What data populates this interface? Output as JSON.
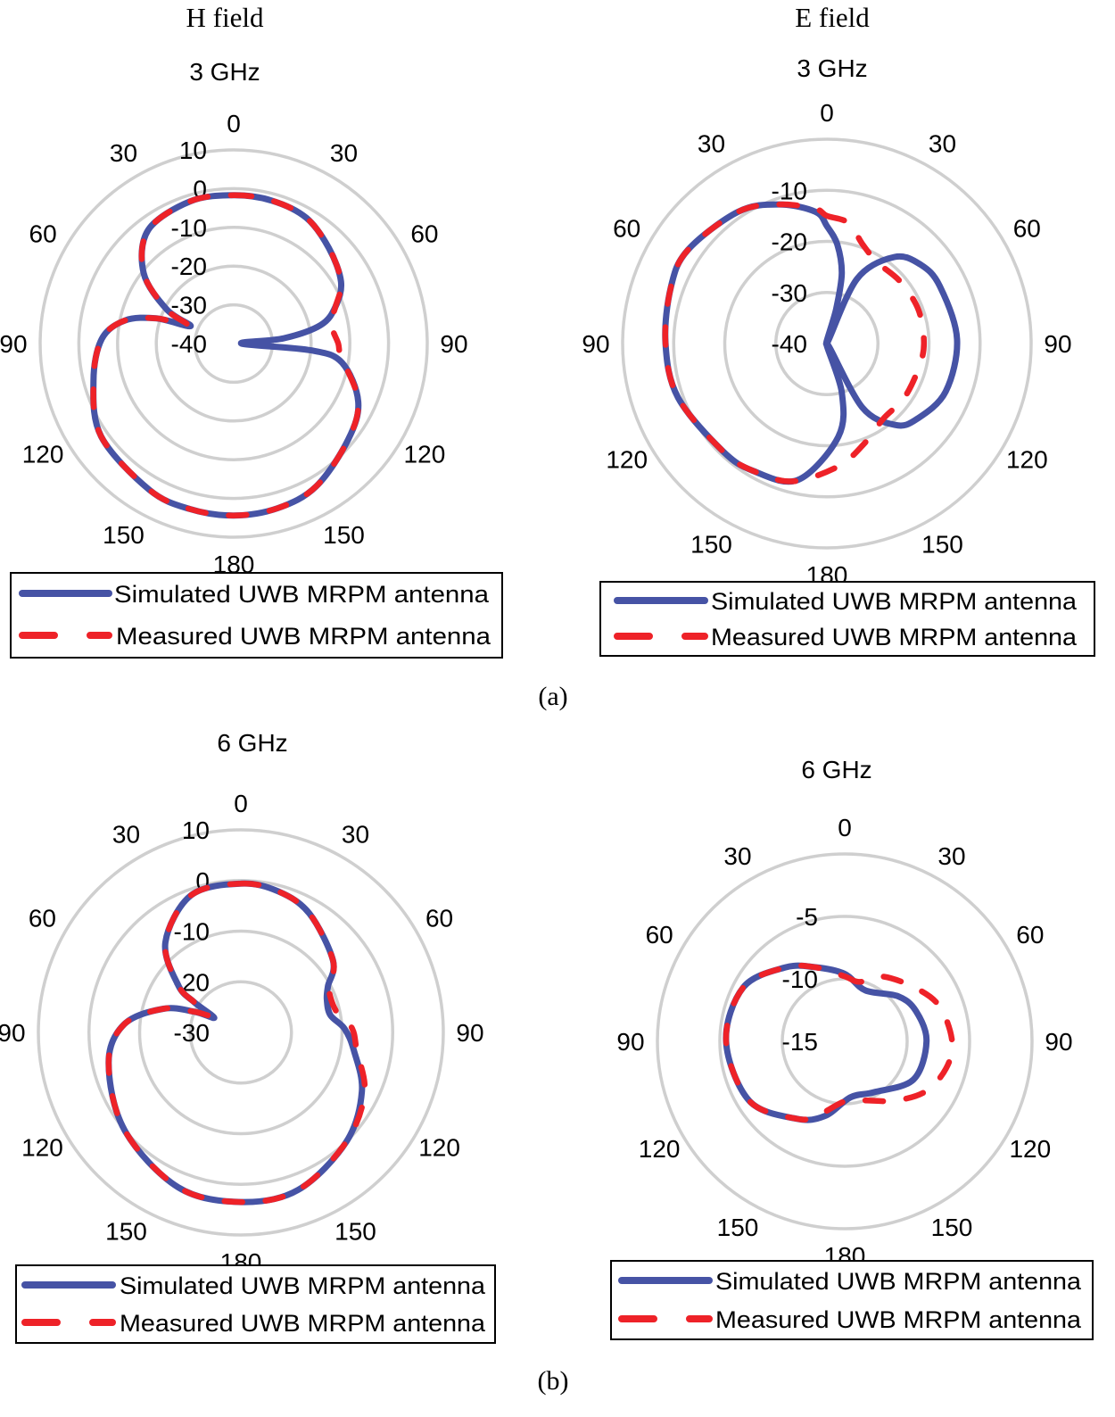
{
  "figure": {
    "panel_labels": [
      "(a)",
      "(b)"
    ]
  },
  "colors": {
    "simulated": "#4653a5",
    "measured": "#ee2228",
    "grid": "#cfcfcf",
    "legend_border": "#000000"
  },
  "chart_data": [
    {
      "type": "polar",
      "title": "H field",
      "subtitle": "3 GHz",
      "angle_unit": "degrees",
      "r_range": [
        -40,
        10
      ],
      "r_ticks": [
        -40,
        -30,
        -20,
        -10,
        0,
        10
      ],
      "r_tick_labels": [
        "-40",
        "-30",
        "-20",
        "-10",
        "0",
        "10"
      ],
      "grid": true,
      "angle_labels": [
        "0",
        "30",
        "60",
        "90",
        "120",
        "150",
        "180",
        "150",
        "120",
        "90",
        "60",
        "30"
      ],
      "legend": "bottom",
      "series": [
        {
          "name": "Simulated UWB MRPM antenna",
          "style": "solid",
          "values": [
            [
              0,
              -1.7
            ],
            [
              15,
              -1.8
            ],
            [
              30,
              -2.5
            ],
            [
              45,
              -5.2
            ],
            [
              60,
              -8
            ],
            [
              70,
              -12
            ],
            [
              78,
              -17
            ],
            [
              84,
              -27
            ],
            [
              90,
              -38
            ],
            [
              95,
              -20
            ],
            [
              100,
              -11.6
            ],
            [
              115,
              -4.5
            ],
            [
              130,
              -1.4
            ],
            [
              150,
              2.6
            ],
            [
              165,
              4
            ],
            [
              180,
              4.4
            ],
            [
              195,
              4.2
            ],
            [
              210,
              3.6
            ],
            [
              235,
              1.8
            ],
            [
              255,
              -2.5
            ],
            [
              272,
              -5.9
            ],
            [
              282,
              -11.3
            ],
            [
              288,
              -19
            ],
            [
              292,
              -28
            ],
            [
              297,
              -20.6
            ],
            [
              308,
              -10.5
            ],
            [
              323,
              -3.3
            ],
            [
              343,
              -1.6
            ]
          ]
        },
        {
          "name": "Measured UWB MRPM antenna",
          "style": "dashed",
          "values": [
            [
              0,
              -1.7
            ],
            [
              15,
              -1.8
            ],
            [
              30,
              -2.5
            ],
            [
              45,
              -5.2
            ],
            [
              60,
              -8
            ],
            [
              70,
              -12
            ],
            [
              78,
              -14.5
            ],
            [
              84,
              -14
            ],
            [
              90,
              -13
            ],
            [
              95,
              -12.5
            ],
            [
              100,
              -11
            ],
            [
              115,
              -4.5
            ],
            [
              130,
              -1.4
            ],
            [
              150,
              2.6
            ],
            [
              165,
              4
            ],
            [
              180,
              4.4
            ],
            [
              195,
              4.2
            ],
            [
              210,
              3.6
            ],
            [
              235,
              1.8
            ],
            [
              255,
              -2.5
            ],
            [
              272,
              -5.9
            ],
            [
              282,
              -11.3
            ],
            [
              288,
              -19
            ],
            [
              292,
              -27
            ],
            [
              297,
              -20.6
            ],
            [
              308,
              -10.5
            ],
            [
              323,
              -3.3
            ],
            [
              343,
              -1.6
            ]
          ]
        }
      ]
    },
    {
      "type": "polar",
      "title": "E field",
      "subtitle": "3 GHz",
      "angle_unit": "degrees",
      "r_range": [
        -40,
        0
      ],
      "r_ticks": [
        -40,
        -30,
        -20,
        -10,
        0
      ],
      "r_tick_labels": [
        "-40",
        "-30",
        "-20",
        "-10"
      ],
      "grid": true,
      "angle_labels": [
        "0",
        "30",
        "60",
        "90",
        "120",
        "150",
        "180",
        "150",
        "120",
        "90",
        "60",
        "30"
      ],
      "legend": "bottom",
      "series": [
        {
          "name": "Simulated UWB MRPM antenna",
          "style": "solid",
          "values": [
            [
              0,
              -17
            ],
            [
              6,
              -20.5
            ],
            [
              12,
              -26
            ],
            [
              15,
              -33
            ],
            [
              18,
              -40
            ],
            [
              25,
              -26
            ],
            [
              38,
              -18.5
            ],
            [
              50,
              -16
            ],
            [
              63,
              -15.2
            ],
            [
              88,
              -14.5
            ],
            [
              112,
              -14.9
            ],
            [
              130,
              -17
            ],
            [
              140,
              -19.2
            ],
            [
              151,
              -25.7
            ],
            [
              157,
              -40
            ],
            [
              163,
              -30
            ],
            [
              173,
              -21.6
            ],
            [
              192,
              -12.7
            ],
            [
              210,
              -11.2
            ],
            [
              224,
              -10.7
            ],
            [
              250,
              -9
            ],
            [
              270,
              -8.4
            ],
            [
              290,
              -7.5
            ],
            [
              304,
              -7.2
            ],
            [
              326,
              -8.9
            ],
            [
              341,
              -11.2
            ],
            [
              355,
              -14.1
            ]
          ]
        },
        {
          "name": "Measured UWB MRPM antenna",
          "style": "dashed",
          "values": [
            [
              0,
              -15
            ],
            [
              10,
              -16
            ],
            [
              20,
              -19.4
            ],
            [
              32,
              -21.3
            ],
            [
              50,
              -21.2
            ],
            [
              70,
              -20.9
            ],
            [
              90,
              -21
            ],
            [
              105,
              -21.4
            ],
            [
              125,
              -21.5
            ],
            [
              143,
              -21.6
            ],
            [
              160,
              -19
            ],
            [
              175,
              -15.8
            ],
            [
              194,
              -12.2
            ],
            [
              210,
              -11.2
            ],
            [
              224,
              -10.7
            ],
            [
              250,
              -9
            ],
            [
              270,
              -8.4
            ],
            [
              290,
              -7.5
            ],
            [
              304,
              -7.2
            ],
            [
              326,
              -8.9
            ],
            [
              341,
              -11.2
            ],
            [
              355,
              -13.5
            ]
          ]
        }
      ]
    },
    {
      "type": "polar",
      "subtitle": "6 GHz",
      "angle_unit": "degrees",
      "r_range": [
        -30,
        10
      ],
      "r_ticks": [
        -30,
        -20,
        -10,
        0,
        10
      ],
      "r_tick_labels": [
        "-30",
        "-20",
        "-10",
        "0",
        "10"
      ],
      "grid": true,
      "angle_labels": [
        "0",
        "30",
        "60",
        "90",
        "120",
        "150",
        "180",
        "150",
        "120",
        "90",
        "60",
        "30"
      ],
      "legend": "bottom",
      "series": [
        {
          "name": "Simulated UWB MRPM antenna",
          "style": "solid",
          "values": [
            [
              0,
              -0.6
            ],
            [
              15,
              -1.2
            ],
            [
              30,
              -2.9
            ],
            [
              52,
              -6.9
            ],
            [
              62,
              -10.5
            ],
            [
              69,
              -11.8
            ],
            [
              79,
              -12
            ],
            [
              88,
              -9.5
            ],
            [
              99,
              -7.4
            ],
            [
              116,
              -3.4
            ],
            [
              136,
              0
            ],
            [
              160,
              3.1
            ],
            [
              180,
              3.5
            ],
            [
              202,
              3
            ],
            [
              230,
              0
            ],
            [
              257,
              -3.2
            ],
            [
              274,
              -6.9
            ],
            [
              287,
              -14
            ],
            [
              294,
              -20
            ],
            [
              299,
              -24
            ],
            [
              303,
              -19
            ],
            [
              307,
              -14.5
            ],
            [
              320,
              -6.8
            ],
            [
              340,
              -1.2
            ]
          ]
        },
        {
          "name": "Measured UWB MRPM antenna",
          "style": "dashed",
          "values": [
            [
              0,
              -0.6
            ],
            [
              15,
              -1.2
            ],
            [
              30,
              -2.9
            ],
            [
              52,
              -6.9
            ],
            [
              62,
              -10.2
            ],
            [
              69,
              -11
            ],
            [
              79,
              -10.5
            ],
            [
              88,
              -8
            ],
            [
              99,
              -6.8
            ],
            [
              116,
              -2.8
            ],
            [
              136,
              0
            ],
            [
              160,
              3.1
            ],
            [
              180,
              3.5
            ],
            [
              202,
              3
            ],
            [
              230,
              0
            ],
            [
              257,
              -3.2
            ],
            [
              274,
              -6.9
            ],
            [
              287,
              -14
            ],
            [
              294,
              -20
            ],
            [
              299,
              -23
            ],
            [
              303,
              -19
            ],
            [
              307,
              -14.5
            ],
            [
              320,
              -6.8
            ],
            [
              340,
              -1.2
            ]
          ]
        }
      ]
    },
    {
      "type": "polar",
      "subtitle": "6 GHz",
      "angle_unit": "degrees",
      "r_range": [
        -15,
        0
      ],
      "r_ticks": [
        -15,
        -10,
        -5,
        0
      ],
      "r_tick_labels": [
        "-15",
        "-10",
        "-5"
      ],
      "grid": true,
      "angle_labels": [
        "0",
        "30",
        "60",
        "90",
        "120",
        "150",
        "180",
        "150",
        "120",
        "90",
        "60",
        "30"
      ],
      "legend": "bottom",
      "series": [
        {
          "name": "Simulated UWB MRPM antenna",
          "style": "solid",
          "values": [
            [
              0,
              -9.6
            ],
            [
              22,
              -10.6
            ],
            [
              50,
              -9.4
            ],
            [
              67,
              -8.8
            ],
            [
              90,
              -8.45
            ],
            [
              119,
              -8.7
            ],
            [
              150,
              -10.3
            ],
            [
              174,
              -10.5
            ],
            [
              195,
              -8.8
            ],
            [
              212,
              -7.7
            ],
            [
              238,
              -6
            ],
            [
              270,
              -5.5
            ],
            [
              298,
              -5.8
            ],
            [
              321,
              -7.4
            ],
            [
              338,
              -8.6
            ]
          ]
        },
        {
          "name": "Measured UWB MRPM antenna",
          "style": "dashed",
          "values": [
            [
              0,
              -9.8
            ],
            [
              14,
              -10.1
            ],
            [
              30,
              -9
            ],
            [
              53,
              -7.9
            ],
            [
              70,
              -6.9
            ],
            [
              90,
              -6.4
            ],
            [
              105,
              -6.6
            ],
            [
              122,
              -7.4
            ],
            [
              140,
              -8.8
            ],
            [
              161,
              -10
            ],
            [
              180,
              -10.2
            ],
            [
              200,
              -8.7
            ],
            [
              212,
              -7.7
            ],
            [
              238,
              -6
            ],
            [
              270,
              -5.5
            ],
            [
              298,
              -5.8
            ],
            [
              321,
              -7.4
            ],
            [
              338,
              -8.6
            ]
          ]
        }
      ]
    }
  ]
}
